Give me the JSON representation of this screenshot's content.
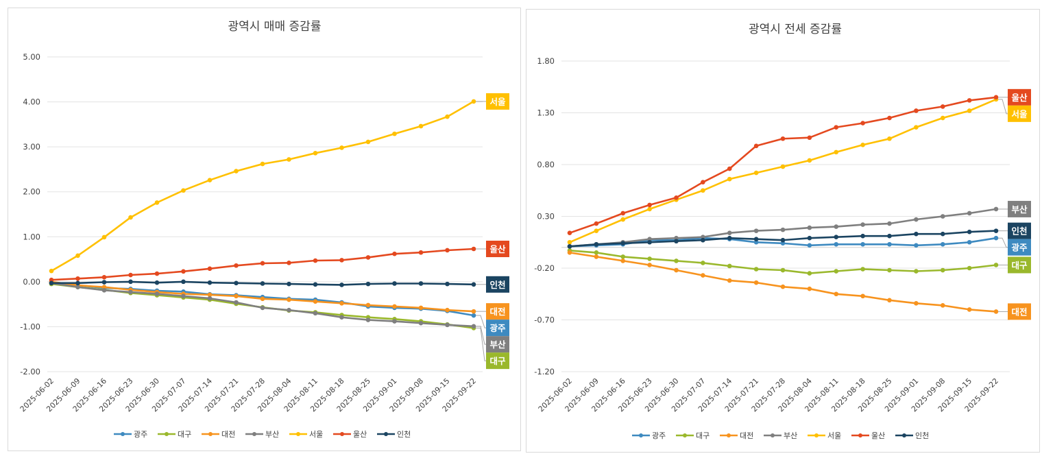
{
  "chart_data": [
    {
      "type": "line",
      "title": "광역시 매매 증감률",
      "xlabel": "",
      "ylabel": "",
      "ylim": [
        -2.0,
        5.0
      ],
      "yticks": [
        "5.00",
        "4.00",
        "3.00",
        "2.00",
        "1.00",
        "0.00",
        "-1.00",
        "-2.00"
      ],
      "ytick_values": [
        5,
        4,
        3,
        2,
        1,
        0,
        -1,
        -2
      ],
      "grid": true,
      "legend": "bottom",
      "x": [
        "2025-06-02",
        "2025-06-09",
        "2025-06-16",
        "2025-06-23",
        "2025-06-30",
        "2025-07-07",
        "2025-07-14",
        "2025-07-21",
        "2025-07-28",
        "2025-08-04",
        "2025-08-11",
        "2025-08-18",
        "2025-08-25",
        "2025-09-01",
        "2025-09-08",
        "2025-09-15",
        "2025-09-22"
      ],
      "series": [
        {
          "name": "광주",
          "color": "#3e8ac0",
          "values": [
            -0.02,
            -0.08,
            -0.14,
            -0.16,
            -0.2,
            -0.22,
            -0.28,
            -0.3,
            -0.34,
            -0.38,
            -0.4,
            -0.46,
            -0.55,
            -0.58,
            -0.6,
            -0.65,
            -0.75
          ]
        },
        {
          "name": "대구",
          "color": "#9ab82c",
          "values": [
            -0.05,
            -0.12,
            -0.18,
            -0.25,
            -0.3,
            -0.35,
            -0.4,
            -0.49,
            -0.57,
            -0.64,
            -0.68,
            -0.74,
            -0.79,
            -0.83,
            -0.88,
            -0.95,
            -1.03
          ]
        },
        {
          "name": "대전",
          "color": "#f7931e",
          "values": [
            0.0,
            -0.08,
            -0.12,
            -0.18,
            -0.23,
            -0.27,
            -0.29,
            -0.32,
            -0.38,
            -0.4,
            -0.44,
            -0.48,
            -0.52,
            -0.55,
            -0.58,
            -0.63,
            -0.66
          ]
        },
        {
          "name": "부산",
          "color": "#7f7f7f",
          "values": [
            -0.03,
            -0.12,
            -0.19,
            -0.23,
            -0.27,
            -0.32,
            -0.37,
            -0.46,
            -0.58,
            -0.63,
            -0.7,
            -0.79,
            -0.85,
            -0.88,
            -0.92,
            -0.96,
            -0.99
          ]
        },
        {
          "name": "서울",
          "color": "#ffc000",
          "values": [
            0.24,
            0.58,
            0.99,
            1.43,
            1.76,
            2.03,
            2.26,
            2.46,
            2.62,
            2.72,
            2.86,
            2.98,
            3.11,
            3.29,
            3.46,
            3.67,
            4.01
          ]
        },
        {
          "name": "울산",
          "color": "#e4491f",
          "values": [
            0.04,
            0.07,
            0.1,
            0.15,
            0.18,
            0.23,
            0.29,
            0.36,
            0.41,
            0.42,
            0.47,
            0.48,
            0.54,
            0.62,
            0.65,
            0.7,
            0.73
          ]
        },
        {
          "name": "인천",
          "color": "#1b4461",
          "values": [
            -0.03,
            -0.03,
            -0.01,
            0.0,
            -0.02,
            0.0,
            -0.02,
            -0.03,
            -0.04,
            -0.05,
            -0.06,
            -0.07,
            -0.05,
            -0.04,
            -0.04,
            -0.05,
            -0.06
          ]
        }
      ],
      "end_labels": [
        {
          "series": "서울",
          "text": "서울"
        },
        {
          "series": "울산",
          "text": "울산"
        },
        {
          "series": "인천",
          "text": "인천"
        },
        {
          "series": "대전",
          "text": "대전"
        },
        {
          "series": "광주",
          "text": "광주"
        },
        {
          "series": "부산",
          "text": "부산"
        },
        {
          "series": "대구",
          "text": "대구"
        }
      ]
    },
    {
      "type": "line",
      "title": "광역시 전세 증감률",
      "xlabel": "",
      "ylabel": "",
      "ylim": [
        -1.2,
        1.8
      ],
      "yticks": [
        "1.80",
        "1.30",
        "0.80",
        "0.30",
        "-0.20",
        "-0.70",
        "-1.20"
      ],
      "ytick_values": [
        1.8,
        1.3,
        0.8,
        0.3,
        -0.2,
        -0.7,
        -1.2
      ],
      "grid": true,
      "legend": "bottom",
      "x": [
        "2025-06-02",
        "2025-06-09",
        "2025-06-16",
        "2025-06-23",
        "2025-06-30",
        "2025-07-07",
        "2025-07-14",
        "2025-07-21",
        "2025-07-28",
        "2025-08-04",
        "2025-08-11",
        "2025-08-18",
        "2025-08-25",
        "2025-09-01",
        "2025-09-08",
        "2025-09-15",
        "2025-09-22"
      ],
      "series": [
        {
          "name": "광주",
          "color": "#3e8ac0",
          "values": [
            0.01,
            0.02,
            0.03,
            0.07,
            0.07,
            0.09,
            0.08,
            0.05,
            0.04,
            0.02,
            0.03,
            0.03,
            0.03,
            0.02,
            0.03,
            0.05,
            0.09
          ]
        },
        {
          "name": "대구",
          "color": "#9ab82c",
          "values": [
            -0.03,
            -0.05,
            -0.09,
            -0.11,
            -0.13,
            -0.15,
            -0.18,
            -0.21,
            -0.22,
            -0.25,
            -0.23,
            -0.21,
            -0.22,
            -0.23,
            -0.22,
            -0.2,
            -0.17
          ]
        },
        {
          "name": "대전",
          "color": "#f7931e",
          "values": [
            -0.05,
            -0.09,
            -0.13,
            -0.17,
            -0.22,
            -0.27,
            -0.32,
            -0.34,
            -0.38,
            -0.4,
            -0.45,
            -0.47,
            -0.51,
            -0.54,
            -0.56,
            -0.6,
            -0.62
          ]
        },
        {
          "name": "부산",
          "color": "#7f7f7f",
          "values": [
            0.01,
            0.03,
            0.05,
            0.08,
            0.09,
            0.1,
            0.14,
            0.16,
            0.17,
            0.19,
            0.2,
            0.22,
            0.23,
            0.27,
            0.3,
            0.33,
            0.37
          ]
        },
        {
          "name": "서울",
          "color": "#ffc000",
          "values": [
            0.05,
            0.16,
            0.27,
            0.37,
            0.46,
            0.55,
            0.66,
            0.72,
            0.78,
            0.84,
            0.92,
            0.99,
            1.05,
            1.16,
            1.25,
            1.32,
            1.43
          ]
        },
        {
          "name": "울산",
          "color": "#e4491f",
          "values": [
            0.14,
            0.23,
            0.33,
            0.41,
            0.48,
            0.63,
            0.76,
            0.98,
            1.05,
            1.06,
            1.16,
            1.2,
            1.25,
            1.32,
            1.36,
            1.42,
            1.45
          ]
        },
        {
          "name": "인천",
          "color": "#1b4461",
          "values": [
            0.01,
            0.03,
            0.04,
            0.05,
            0.06,
            0.07,
            0.09,
            0.08,
            0.07,
            0.09,
            0.1,
            0.11,
            0.11,
            0.13,
            0.13,
            0.15,
            0.16
          ]
        }
      ],
      "end_labels": [
        {
          "series": "울산",
          "text": "울산"
        },
        {
          "series": "서울",
          "text": "서울"
        },
        {
          "series": "부산",
          "text": "부산"
        },
        {
          "series": "인천",
          "text": "인천"
        },
        {
          "series": "광주",
          "text": "광주"
        },
        {
          "series": "대구",
          "text": "대구"
        },
        {
          "series": "대전",
          "text": "대전"
        }
      ]
    }
  ]
}
